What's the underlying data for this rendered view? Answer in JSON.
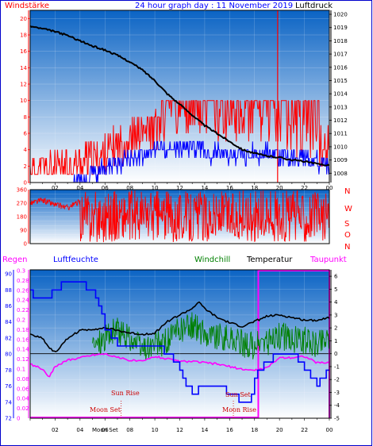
{
  "header": {
    "wind_label": "Windstärke",
    "title": "24 hour graph day : 11 November 2019",
    "pressure_label": "Luftdruck"
  },
  "legend": {
    "rain": "Regen",
    "humidity": "Luftfeuchte",
    "windchill": "Windchill",
    "temperature": "Temperatur",
    "dewpoint": "Taupunkt"
  },
  "compass": [
    "N",
    "W",
    "S",
    "O",
    "N"
  ],
  "events": {
    "sun_rise": "Sun Rise",
    "sun_set": "Sun Set",
    "moon_set": "Moon Set",
    "moon_rise": "Moon Rise"
  },
  "colors": {
    "frame": "#0000cc",
    "sky_top": "#0a63c4",
    "sky_bottom": "#ffffff",
    "wind_avg": "#0000ff",
    "wind_gust": "#ff0000",
    "pressure": "#000000",
    "direction": "#ff0000",
    "temperature": "#000000",
    "windchill": "#008000",
    "dewpoint": "#ff00ff",
    "humidity": "#0000ff",
    "rain": "#ff00ff",
    "events": "#cc0000"
  },
  "chart_data": [
    {
      "type": "line",
      "title": "24 hour graph day : 11 November 2019",
      "x_ticks": [
        "02",
        "04",
        "06",
        "08",
        "10",
        "12",
        "14",
        "16",
        "18",
        "20",
        "22",
        "00"
      ],
      "y_left_ticks": [
        0,
        2,
        4,
        6,
        8,
        10,
        12,
        14,
        16,
        18,
        20
      ],
      "y_right_ticks": [
        1008,
        1009,
        1010,
        1011,
        1012,
        1013,
        1014,
        1015,
        1016,
        1017,
        1018,
        1019,
        1020
      ],
      "y_left_range": [
        0,
        21
      ],
      "y_right_range": [
        1007.3,
        1020.3
      ],
      "series": [
        {
          "name": "Windstärke",
          "hours": [
            0,
            3.5,
            5.5,
            7,
            9,
            11,
            13,
            15,
            17,
            19,
            21,
            23,
            24
          ],
          "values": [
            0,
            0,
            1.5,
            2.5,
            3.5,
            4,
            4,
            3.5,
            3.5,
            3.5,
            3,
            2.5,
            2
          ]
        },
        {
          "name": "Böen",
          "hours": [
            0,
            3.5,
            5.5,
            7,
            9,
            11,
            13,
            15,
            17,
            19,
            21,
            23,
            24
          ],
          "values": [
            1,
            2,
            3,
            4.5,
            6,
            7,
            8,
            7.5,
            7,
            7.5,
            6,
            5,
            4
          ]
        },
        {
          "name": "Luftdruck",
          "hours": [
            0,
            1,
            2,
            3,
            4,
            5,
            6,
            7,
            8,
            9,
            10,
            11,
            12,
            13,
            14,
            15,
            16,
            17,
            18,
            19,
            20,
            21,
            22,
            23,
            24
          ],
          "values": [
            1019.1,
            1018.9,
            1018.7,
            1018.4,
            1018.0,
            1017.6,
            1017.3,
            1016.9,
            1016.4,
            1015.8,
            1015.0,
            1014.0,
            1013.2,
            1012.4,
            1011.6,
            1011.0,
            1010.4,
            1009.8,
            1009.5,
            1009.3,
            1009.2,
            1009.0,
            1008.9,
            1008.7,
            1008.6
          ]
        }
      ],
      "spike": {
        "hour": 19.85,
        "value": 21
      },
      "gust_bands": [
        {
          "from": 0.5,
          "to": 2.5,
          "value": 2
        },
        {
          "from": 2.5,
          "to": 6.5,
          "value": 3
        },
        {
          "from": 6.5,
          "to": 9.5,
          "value": 5.5
        },
        {
          "from": 9.5,
          "to": 10.5,
          "value": 9
        },
        {
          "from": 10.5,
          "to": 18.5,
          "value": 9.5
        },
        {
          "from": 18.5,
          "to": 23.2,
          "value": 9.5
        },
        {
          "from": 23.2,
          "to": 24,
          "value": 5.5
        }
      ]
    },
    {
      "type": "line",
      "title": "",
      "x_ticks": [
        "02",
        "04",
        "06",
        "08",
        "10",
        "12",
        "14",
        "16",
        "18",
        "20",
        "22",
        "00"
      ],
      "y_ticks": [
        0,
        30,
        60,
        90,
        120,
        150,
        180,
        210,
        240,
        270,
        300,
        330,
        360
      ],
      "y_range": [
        0,
        360
      ],
      "series": [
        {
          "name": "Windrichtung",
          "hours": [
            0,
            1,
            2,
            3,
            4,
            5,
            6,
            8,
            10,
            12,
            14,
            16,
            18,
            20,
            22,
            24
          ],
          "values": [
            270,
            290,
            260,
            240,
            280,
            200,
            300,
            200,
            220,
            200,
            180,
            200,
            210,
            220,
            230,
            210
          ]
        }
      ]
    },
    {
      "type": "line",
      "title": "",
      "x_ticks": [
        "02",
        "04",
        "06",
        "08",
        "10",
        "12",
        "14",
        "16",
        "18",
        "20",
        "22",
        "00"
      ],
      "y_humidity_ticks": [
        72,
        74,
        76,
        78,
        80,
        82,
        84,
        86,
        88,
        90
      ],
      "y_rain_ticks": [
        0,
        0.02,
        0.04,
        0.06,
        0.08,
        0.1,
        0.12,
        0.14,
        0.16,
        0.18,
        0.2,
        0.22,
        0.24,
        0.26,
        0.28,
        0.3
      ],
      "y_temp_ticks": [
        -5,
        -4,
        -3,
        -2,
        -1,
        0,
        1,
        2,
        3,
        4,
        5,
        6
      ],
      "humidity_range": [
        72,
        90.5
      ],
      "temp_range": [
        -5,
        6.5
      ],
      "series": [
        {
          "name": "Temperatur",
          "hours": [
            0,
            1,
            1.5,
            2,
            2.5,
            3,
            4,
            5,
            6,
            7,
            8,
            9,
            10,
            11,
            12,
            13,
            13.5,
            14,
            15,
            16,
            17,
            18,
            19,
            20,
            21,
            22,
            23,
            24
          ],
          "values": [
            1.5,
            1.2,
            0.5,
            0.1,
            0.6,
            1.2,
            1.8,
            1.9,
            2.0,
            1.8,
            1.6,
            1.5,
            1.6,
            2.5,
            3.0,
            3.5,
            4.0,
            3.5,
            2.8,
            2.4,
            2.1,
            2.5,
            2.9,
            3.0,
            2.8,
            2.6,
            2.6,
            2.8
          ]
        },
        {
          "name": "Windchill",
          "hours": [
            5,
            6,
            7,
            8,
            9,
            10,
            11,
            12,
            13,
            14,
            15,
            16,
            17,
            18,
            19,
            20,
            21,
            22,
            23,
            24
          ],
          "values": [
            0.6,
            1.3,
            1.8,
            1.2,
            0.3,
            0.6,
            1.0,
            1.8,
            2.2,
            1.6,
            1.3,
            1.1,
            0.8,
            0.6,
            0.9,
            1.4,
            1.1,
            1.0,
            0.8,
            1.3
          ]
        },
        {
          "name": "Taupunkt",
          "hours": [
            0,
            1,
            1.5,
            2,
            3,
            4,
            5,
            6,
            7,
            8,
            9,
            10,
            11,
            12,
            13,
            14,
            15,
            16,
            17,
            18,
            19,
            20,
            21,
            22,
            23,
            24
          ],
          "values": [
            -0.8,
            -1.2,
            -1.8,
            -1.0,
            -0.5,
            -0.3,
            -0.1,
            0.0,
            -0.3,
            -0.5,
            -0.6,
            -0.2,
            -0.4,
            -0.6,
            -0.6,
            -0.7,
            -0.8,
            -1.0,
            -1.2,
            -1.3,
            -1.1,
            -0.3,
            -0.3,
            -0.2,
            -0.7,
            -0.7
          ]
        },
        {
          "name": "Luftfeuchte",
          "hours": [
            0,
            1,
            2,
            3,
            4,
            5,
            5.5,
            6,
            6.5,
            7,
            8,
            9,
            10,
            11,
            11.5,
            12,
            12.5,
            13,
            14,
            15,
            16,
            17,
            17.5,
            18,
            18.5,
            19,
            20,
            21,
            22,
            23,
            24
          ],
          "values": [
            87.5,
            86.5,
            88,
            89,
            89,
            87.5,
            86,
            83,
            82,
            81,
            81,
            81,
            81,
            80,
            79,
            78,
            76,
            75,
            76,
            76,
            75,
            74,
            73.5,
            77,
            78,
            79,
            80,
            80,
            78,
            76,
            78
          ]
        }
      ],
      "rain_box": {
        "from": 18.3,
        "to": 24,
        "amount": 0.3
      }
    }
  ]
}
